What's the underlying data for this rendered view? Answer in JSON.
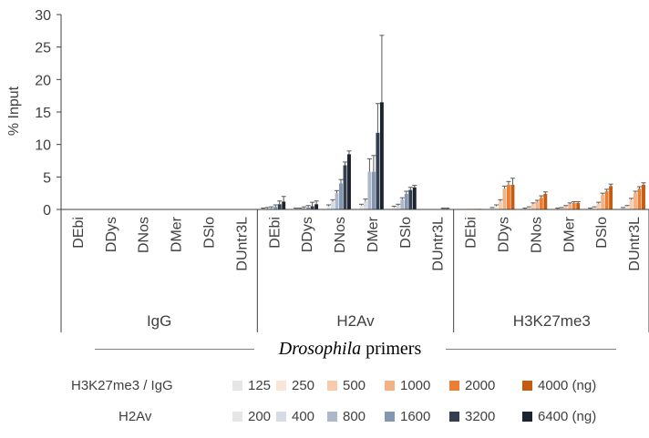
{
  "chart_data": {
    "type": "bar",
    "ylabel": "% Input",
    "ylim": [
      0,
      30
    ],
    "yticks": [
      0,
      5,
      10,
      15,
      20,
      25,
      30
    ],
    "xlabel_italic": "Drosophila",
    "xlabel_rest": "primers",
    "groups": [
      {
        "name": "IgG",
        "primers": [
          "DEbi",
          "DDys",
          "DNos",
          "DMer",
          "DSlo",
          "DUntr3L"
        ],
        "palette": "h3k",
        "values": [
          [
            0,
            0,
            0,
            0,
            0,
            0
          ],
          [
            0,
            0,
            0,
            0,
            0,
            0
          ],
          [
            0,
            0,
            0,
            0,
            0,
            0
          ],
          [
            0,
            0,
            0,
            0,
            0,
            0
          ],
          [
            0,
            0,
            0,
            0,
            0,
            0
          ],
          [
            0,
            0,
            0,
            0,
            0,
            0
          ]
        ],
        "errors": [
          [
            0,
            0,
            0,
            0,
            0,
            0
          ],
          [
            0,
            0,
            0,
            0,
            0,
            0
          ],
          [
            0,
            0,
            0,
            0,
            0,
            0
          ],
          [
            0,
            0,
            0,
            0,
            0,
            0
          ],
          [
            0,
            0,
            0,
            0,
            0,
            0
          ],
          [
            0,
            0,
            0,
            0,
            0,
            0
          ]
        ]
      },
      {
        "name": "H2Av",
        "primers": [
          "DEbi",
          "DDys",
          "DNos",
          "DMer",
          "DSlo",
          "DUntr3L"
        ],
        "palette": "h2av",
        "values": [
          [
            0.1,
            0.1,
            0.2,
            0.4,
            0.8,
            1.2
          ],
          [
            0.1,
            0.1,
            0.2,
            0.3,
            0.5,
            0.8
          ],
          [
            0.5,
            1.2,
            2.5,
            4.0,
            6.8,
            8.5
          ],
          [
            0.6,
            1.2,
            5.8,
            5.8,
            11.8,
            16.5
          ],
          [
            0.3,
            0.6,
            1.5,
            2.4,
            3.0,
            3.4
          ],
          [
            0.0,
            0.0,
            0.0,
            0.0,
            0.1,
            0.1
          ]
        ],
        "errors": [
          [
            0.1,
            0.2,
            0.2,
            0.3,
            0.5,
            0.8
          ],
          [
            0.1,
            0.1,
            0.2,
            0.3,
            0.6,
            0.5
          ],
          [
            0.2,
            0.3,
            0.4,
            0.6,
            0.5,
            0.5
          ],
          [
            0.2,
            0.4,
            2.0,
            2.5,
            4.5,
            10.3
          ],
          [
            0.2,
            0.2,
            0.3,
            0.4,
            0.4,
            0.3
          ],
          [
            0,
            0,
            0,
            0,
            0.1,
            0.1
          ]
        ]
      },
      {
        "name": "H3K27me3",
        "primers": [
          "DEbi",
          "DDys",
          "DNos",
          "DMer",
          "DSlo",
          "DUntr3L"
        ],
        "palette": "h3k",
        "values": [
          [
            0.1,
            0.1,
            0.1,
            0.1,
            0.1,
            0.1
          ],
          [
            0.2,
            0.5,
            1.2,
            3.2,
            3.8,
            3.8
          ],
          [
            0.1,
            0.3,
            0.8,
            1.2,
            1.8,
            2.4
          ],
          [
            0.1,
            0.2,
            0.5,
            0.8,
            1.0,
            1.0
          ],
          [
            0.1,
            0.3,
            0.9,
            2.2,
            2.8,
            3.6
          ],
          [
            0.2,
            0.5,
            1.5,
            2.5,
            3.2,
            3.8
          ]
        ],
        "errors": [
          [
            0,
            0,
            0,
            0,
            0,
            0
          ],
          [
            0.1,
            0.2,
            0.3,
            0.4,
            0.5,
            1.0
          ],
          [
            0.1,
            0.1,
            0.2,
            0.2,
            0.3,
            0.3
          ],
          [
            0.1,
            0.1,
            0.1,
            0.2,
            0.2,
            0.2
          ],
          [
            0.1,
            0.1,
            0.2,
            0.3,
            0.3,
            0.3
          ],
          [
            0.1,
            0.1,
            0.2,
            0.3,
            0.3,
            0.3
          ]
        ]
      }
    ]
  },
  "legend": {
    "rows": [
      {
        "title": "H3K27me3 / IgG",
        "palette": "h3k",
        "items": [
          "125",
          "250",
          "500",
          "1000",
          "2000",
          "4000 (ng)"
        ]
      },
      {
        "title": "H2Av",
        "palette": "h2av",
        "items": [
          "200",
          "400",
          "800",
          "1600",
          "3200",
          "6400 (ng)"
        ]
      }
    ]
  },
  "colors": {
    "h3k": [
      "#e7e6e6",
      "#fbe5d6",
      "#f8cbad",
      "#f4b183",
      "#ed7d31",
      "#c55a11"
    ],
    "h2av": [
      "#e7e6e6",
      "#d6dce5",
      "#adb9ca",
      "#8497b0",
      "#333f50",
      "#1c2330"
    ],
    "axis": "#404040",
    "error_bar": "#595959"
  }
}
